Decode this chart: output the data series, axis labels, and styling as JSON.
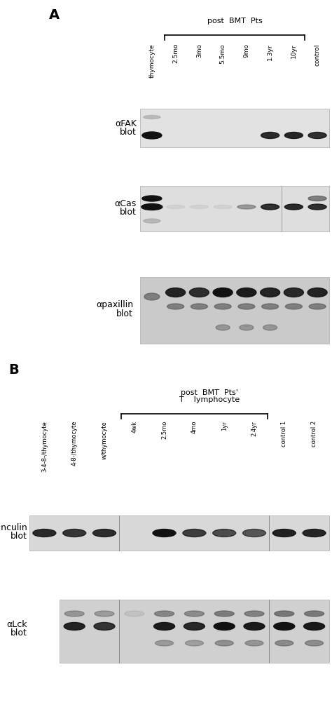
{
  "bg_color": "#ffffff",
  "band_dark": "#111111",
  "band_mid": "#555555",
  "band_light": "#888888",
  "band_faint": "#bbbbbb",
  "panelA_col_labels": [
    "thymocyte",
    "2.5mo",
    "3mo",
    "5.5mo",
    "9mo",
    "1.3yr",
    "10yr",
    "control"
  ],
  "panelA_blot1_label1": "αFAK",
  "panelA_blot1_label2": "blot",
  "panelA_blot2_label1": "αCas",
  "panelA_blot2_label2": "blot",
  "panelA_blot3_label1": "αpaxillin",
  "panelA_blot3_label2": "blot",
  "panelB_col_labels": [
    "3-4-8-/thymocyte",
    "4-8-/thymocyte",
    "w/thymocyte",
    "4wk",
    "2.5mo",
    "4mo",
    "1yr",
    "2.4yr",
    "control 1",
    "control 2"
  ],
  "panelB_blot1_label1": "αvinculin",
  "panelB_blot1_label2": "blot",
  "panelB_blot2_label1": "αLck",
  "panelB_blot2_label2": "blot"
}
